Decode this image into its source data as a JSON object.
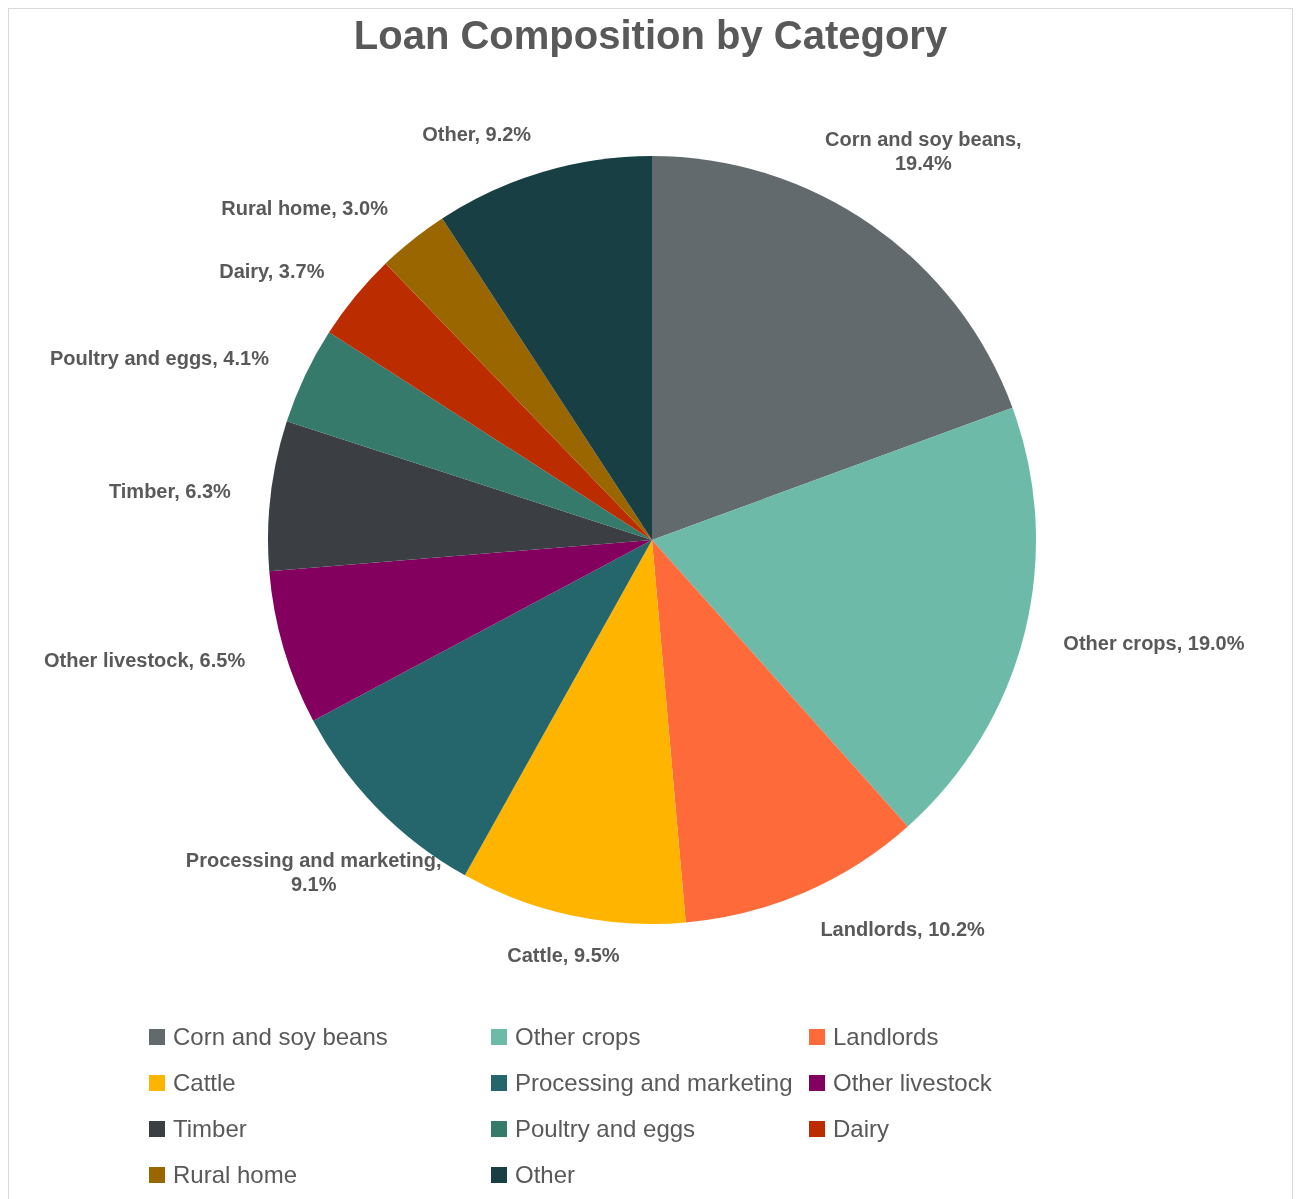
{
  "chart_data": {
    "type": "pie",
    "title": "Loan Composition by Category",
    "categories": [
      "Corn and soy beans",
      "Other crops",
      "Landlords",
      "Cattle",
      "Processing and marketing",
      "Other livestock",
      "Timber",
      "Poultry and eggs",
      "Dairy",
      "Rural home",
      "Other"
    ],
    "values": [
      19.4,
      19.0,
      10.2,
      9.5,
      9.1,
      6.5,
      6.3,
      4.1,
      3.7,
      3.0,
      9.2
    ],
    "value_labels": [
      "Corn and soy beans, 19.4%",
      "Other crops, 19.0%",
      "Landlords, 10.2%",
      "Cattle, 9.5%",
      "Processing and marketing, 9.1%",
      "Other livestock, 6.5%",
      "Timber, 6.3%",
      "Poultry and eggs, 4.1%",
      "Dairy, 3.7%",
      "Rural home, 3.0%",
      "Other, 9.2%"
    ],
    "colors": [
      "#636a6e",
      "#6dbaa9",
      "#ff6a3a",
      "#ffb400",
      "#25666c",
      "#84005f",
      "#3b3f44",
      "#367a6b",
      "#bb2c00",
      "#996600",
      "#183f44"
    ],
    "legend": "bottom"
  }
}
